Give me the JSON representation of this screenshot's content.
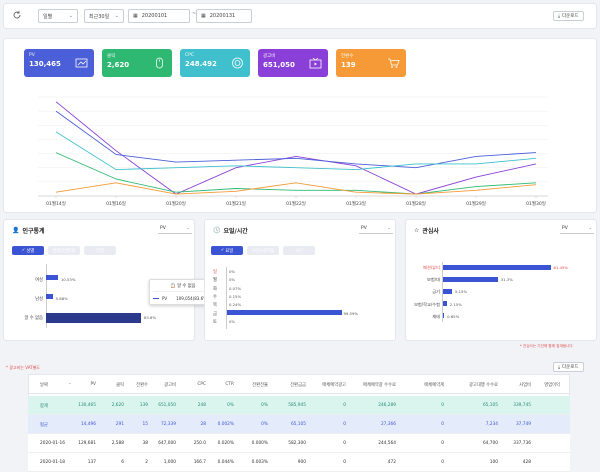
{
  "filter": {
    "group_by": "일별",
    "period": "최근30일",
    "date_from": "20200101",
    "date_to": "20200131",
    "download_label": "다운로드"
  },
  "kpis": [
    {
      "label": "PV",
      "value": "130,465",
      "color": "#4a5fd8",
      "icon": "chart-monitor-icon"
    },
    {
      "label": "클릭",
      "value": "2,620",
      "color": "#2eb872",
      "icon": "mouse-icon"
    },
    {
      "label": "CPC",
      "value": "248.492",
      "color": "#3fc0cc",
      "icon": "coin-icon"
    },
    {
      "label": "광고비",
      "value": "651,050",
      "color": "#8a3fd8",
      "icon": "tv-icon"
    },
    {
      "label": "전환수",
      "value": "139",
      "color": "#f59a36",
      "icon": "cart-icon"
    }
  ],
  "chart_data": {
    "type": "line",
    "x": [
      "01월14일",
      "01월16일",
      "01월20일",
      "01월21일",
      "01월22일",
      "01월23일",
      "01월28일",
      "01월29일",
      "01월30일"
    ],
    "series": [
      {
        "color": "#8a3fd8",
        "values": [
          100,
          48,
          2,
          30,
          42,
          32,
          2,
          20,
          34
        ]
      },
      {
        "color": "#4a5fd8",
        "values": [
          90,
          44,
          36,
          38,
          40,
          34,
          30,
          42,
          46
        ]
      },
      {
        "color": "#2eb872",
        "values": [
          46,
          18,
          4,
          8,
          6,
          6,
          2,
          10,
          14
        ]
      },
      {
        "color": "#f59a36",
        "values": [
          4,
          14,
          2,
          5,
          14,
          4,
          2,
          6,
          12
        ]
      },
      {
        "color": "#3fc0cc",
        "values": [
          68,
          28,
          30,
          32,
          30,
          28,
          34,
          34,
          40
        ]
      }
    ]
  },
  "demographics": {
    "title": "인구통계",
    "metric": "PV",
    "tabs": [
      "성별",
      "연령(연령대)",
      "연령"
    ],
    "rows": [
      {
        "label": "여성",
        "pct": "10.53%",
        "value": 10.53,
        "icon": "female-icon"
      },
      {
        "label": "남성",
        "pct": "5.88%",
        "value": 5.88,
        "icon": "male-icon"
      },
      {
        "label": "알 수 없음",
        "pct": "83.6%",
        "value": 83.6,
        "icon": ""
      }
    ],
    "tooltip": {
      "title": "알 수 없음",
      "series": "PV",
      "value": "109,054(83.6%)"
    }
  },
  "weekday": {
    "title": "요일/시간",
    "metric": "PV",
    "tabs": [
      "요일",
      "시간(시간대)",
      "시간"
    ],
    "rows": [
      {
        "label": "일",
        "pct": "0%",
        "value": 0
      },
      {
        "label": "월",
        "pct": "0%",
        "value": 0
      },
      {
        "label": "화",
        "pct": "0.07%",
        "value": 0.07
      },
      {
        "label": "수",
        "pct": "0.15%",
        "value": 0.15
      },
      {
        "label": "목",
        "pct": "0.24%",
        "value": 0.24
      },
      {
        "label": "금",
        "pct": "99.59%",
        "value": 99.59
      },
      {
        "label": "토",
        "pct": "0%",
        "value": 0
      }
    ]
  },
  "interest": {
    "title": "관심사",
    "metric": "PV",
    "rows": [
      {
        "label": "패션/뷰티",
        "pct": "61.45%",
        "value": 61.45,
        "highlight": true
      },
      {
        "label": "보험/대",
        "pct": "31.3%",
        "value": 31.3,
        "highlight": false
      },
      {
        "label": "금기",
        "pct": "5.15%",
        "value": 5.15,
        "highlight": false
      },
      {
        "label": "보험/학교/수험",
        "pct": "2.15%",
        "value": 2.15,
        "highlight": false
      },
      {
        "label": "재테",
        "pct": "0.65%",
        "value": 0.65,
        "highlight": false
      }
    ],
    "note": "* 관심사는 기간에 함께 집계됩니다"
  },
  "table_section": {
    "left_note": "* 광고비는 VAT별도",
    "download_label": "다운로드",
    "headers": [
      "날짜",
      "PV",
      "클릭",
      "전환수",
      "광고비",
      "CPC",
      "CTR",
      "전환전율",
      "전환금금",
      "매체예약광고",
      "매체예약광 수수료",
      "매체예약계",
      "광고대행 수수료",
      "사업비",
      "영업이익"
    ],
    "rows": [
      {
        "type": "total",
        "cells": [
          "합계",
          "130,465",
          "2,620",
          "139",
          "651,050",
          "248",
          "0%",
          "0%",
          "585,945",
          "0",
          "246,289",
          "0",
          "65,105",
          "339,745",
          ""
        ]
      },
      {
        "type": "avg",
        "cells": [
          "평균",
          "14,496",
          "291",
          "15",
          "72,339",
          "28",
          "0.002%",
          "0%",
          "65,105",
          "0",
          "27,366",
          "0",
          "7,234",
          "37,749",
          ""
        ]
      },
      {
        "type": "data",
        "cells": [
          "2020-01-16",
          "129,681",
          "2,588",
          "38",
          "647,000",
          "250.0",
          "0.020%",
          "0.000%",
          "582,300",
          "0",
          "244,564",
          "0",
          "64,700",
          "337,736",
          ""
        ]
      },
      {
        "type": "data",
        "cells": [
          "2020-01-18",
          "137",
          "6",
          "2",
          "1,000",
          "166.7",
          "0.044%",
          "0.003%",
          "900",
          "0",
          "472",
          "0",
          "100",
          "428",
          ""
        ]
      }
    ]
  }
}
